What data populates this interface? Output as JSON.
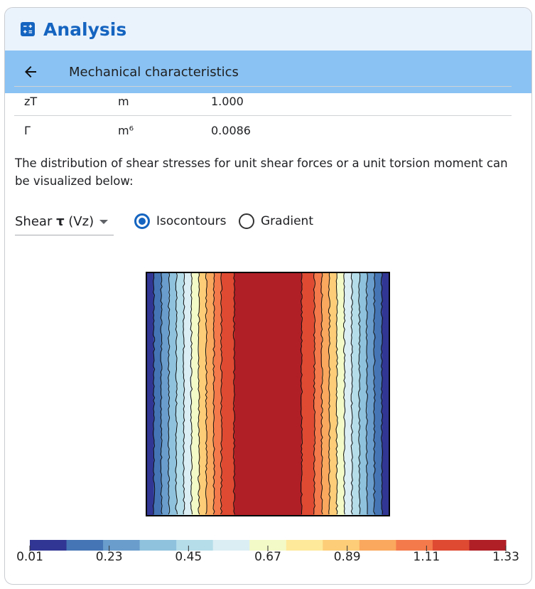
{
  "header": {
    "title": "Analysis",
    "icon": "calculator-icon"
  },
  "subbar": {
    "title": "Mechanical characteristics",
    "back_icon": "arrow-left-icon"
  },
  "table": {
    "rows": [
      {
        "symbol": "zT",
        "unit": "m",
        "value": "1.000"
      },
      {
        "symbol": "Γ",
        "unit": "m⁶",
        "value": "0.0086"
      }
    ]
  },
  "description": "The distribution of shear stresses for unit shear forces or a unit torsion moment can be visualized below:",
  "select": {
    "prefix": "Shear ",
    "symbol": "τ",
    "suffix": " (Vz)"
  },
  "radios": {
    "isocontours": {
      "label": "Isocontours",
      "checked": true
    },
    "gradient": {
      "label": "Gradient",
      "checked": false
    }
  },
  "colors": {
    "accent": "#1565c0",
    "header_bg": "#eaf2fb",
    "subbar_bg": "#89c2f3"
  },
  "chart_data": {
    "type": "heatmap",
    "description_type": "contour",
    "colorbar": {
      "min": 0.01,
      "max": 1.33,
      "tick_labels": [
        "0.01",
        "0.23",
        "0.45",
        "0.67",
        "0.89",
        "1.11",
        "1.33"
      ],
      "levels": [
        0.01,
        0.12,
        0.23,
        0.34,
        0.45,
        0.56,
        0.67,
        0.78,
        0.89,
        1.0,
        1.11,
        1.22,
        1.33
      ],
      "colors": [
        "#313695",
        "#4575b4",
        "#6a9dcb",
        "#8fc3dd",
        "#b5dce9",
        "#daeef3",
        "#f4f9c8",
        "#fee99a",
        "#fdcd78",
        "#fba85f",
        "#f4794b",
        "#df4b32",
        "#b01f26"
      ]
    },
    "bands_left_to_right": [
      0.06,
      0.17,
      0.28,
      0.39,
      0.5,
      0.61,
      0.72,
      0.83,
      0.94,
      1.05,
      1.16,
      1.27,
      1.16,
      1.05,
      0.94,
      0.83,
      0.72,
      0.61,
      0.5,
      0.39,
      0.28,
      0.17,
      0.06
    ]
  }
}
